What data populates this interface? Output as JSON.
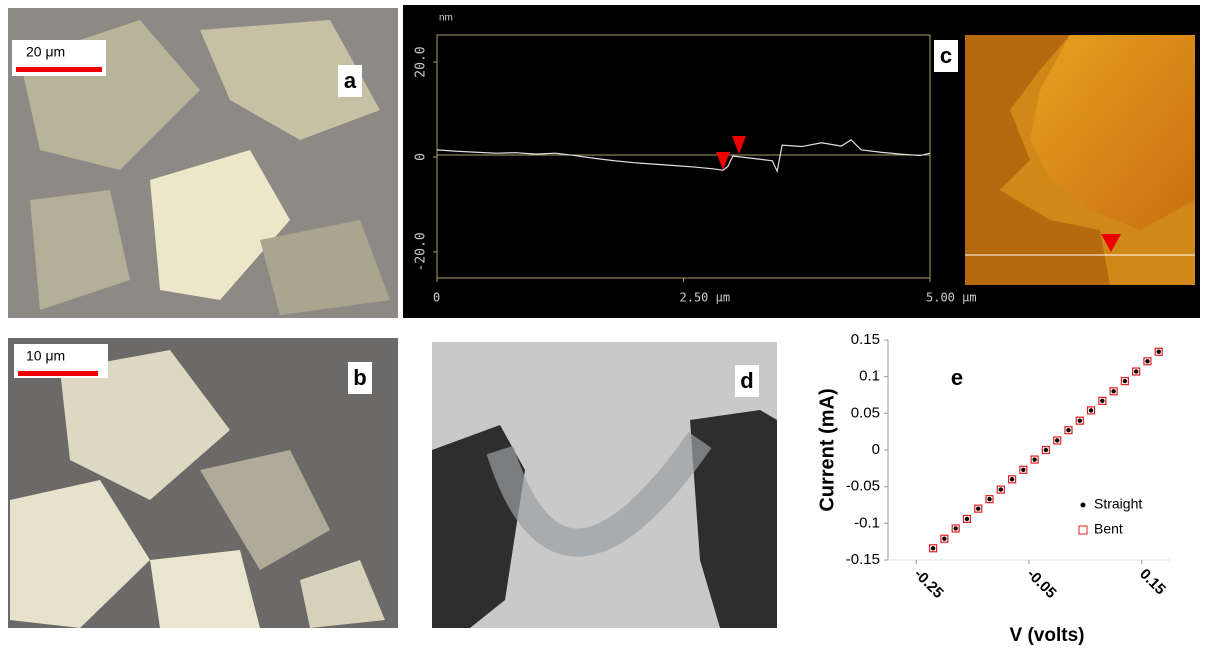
{
  "panels": {
    "a": {
      "label": "a",
      "scale": "20 μm"
    },
    "b": {
      "label": "b",
      "scale": "10 μm"
    },
    "c": {
      "label": "c"
    },
    "d": {
      "label": "d"
    },
    "e": {
      "label": "e"
    }
  },
  "chart_data": [
    {
      "type": "line",
      "y_label": "nm",
      "x": [
        0,
        0.2,
        0.4,
        0.6,
        0.8,
        1.0,
        1.2,
        1.4,
        1.6,
        1.8,
        2.0,
        2.2,
        2.4,
        2.6,
        2.8,
        2.9,
        2.95,
        3.0,
        3.2,
        3.4,
        3.45,
        3.5,
        3.7,
        3.9,
        4.1,
        4.2,
        4.3,
        4.5,
        4.7,
        4.9,
        5.0
      ],
      "values": [
        1.5,
        1.2,
        1.0,
        0.8,
        0.9,
        0.6,
        0.8,
        0.3,
        -0.3,
        -0.8,
        -1.2,
        -1.5,
        -1.8,
        -2.1,
        -2.5,
        -2.8,
        -2.0,
        0.2,
        -0.3,
        -0.8,
        -3.0,
        2.5,
        2.2,
        3.0,
        2.3,
        3.6,
        1.5,
        1.0,
        0.6,
        0.3,
        0.8
      ],
      "color": "#e0e0e0",
      "xlim": [
        0,
        5
      ],
      "xticks": [
        0,
        {
          "value": 2.5,
          "label": "2.50 μm"
        },
        {
          "value": 5,
          "label": "5.00 μm"
        }
      ],
      "ylim": [
        -25.5,
        25.7
      ],
      "yticks": [
        {
          "value": 20,
          "label": "20.0"
        },
        0,
        {
          "value": -20,
          "label": "-20.0"
        }
      ]
    },
    {
      "type": "scatter",
      "x_label": "V (volts)",
      "y_label": "Current (mA)",
      "x": [
        -0.22,
        -0.2,
        -0.18,
        -0.16,
        -0.14,
        -0.12,
        -0.1,
        -0.08,
        -0.06,
        -0.04,
        -0.02,
        0,
        0.02,
        0.04,
        0.06,
        0.08,
        0.1,
        0.12,
        0.14,
        0.16,
        0.18
      ],
      "series": [
        {
          "name": "Straight",
          "color": "#000000",
          "values": [
            -0.134,
            -0.121,
            -0.107,
            -0.094,
            -0.08,
            -0.067,
            -0.054,
            -0.04,
            -0.027,
            -0.013,
            0,
            0.013,
            0.027,
            0.04,
            0.054,
            0.067,
            0.08,
            0.094,
            0.107,
            0.121,
            0.134
          ]
        },
        {
          "name": "Bent",
          "color": "#e02020",
          "values": [
            -0.134,
            -0.121,
            -0.107,
            -0.094,
            -0.08,
            -0.067,
            -0.054,
            -0.04,
            -0.027,
            -0.013,
            0,
            0.013,
            0.027,
            0.04,
            0.054,
            0.067,
            0.08,
            0.094,
            0.107,
            0.121,
            0.134
          ]
        }
      ],
      "xlim": [
        -0.3,
        0.2
      ],
      "xticks": [
        -0.25,
        -0.05,
        0.15
      ],
      "ylim": [
        -0.15,
        0.15
      ],
      "yticks": [
        0.15,
        0.1,
        0.05,
        0,
        -0.05,
        -0.1,
        -0.15
      ]
    }
  ]
}
